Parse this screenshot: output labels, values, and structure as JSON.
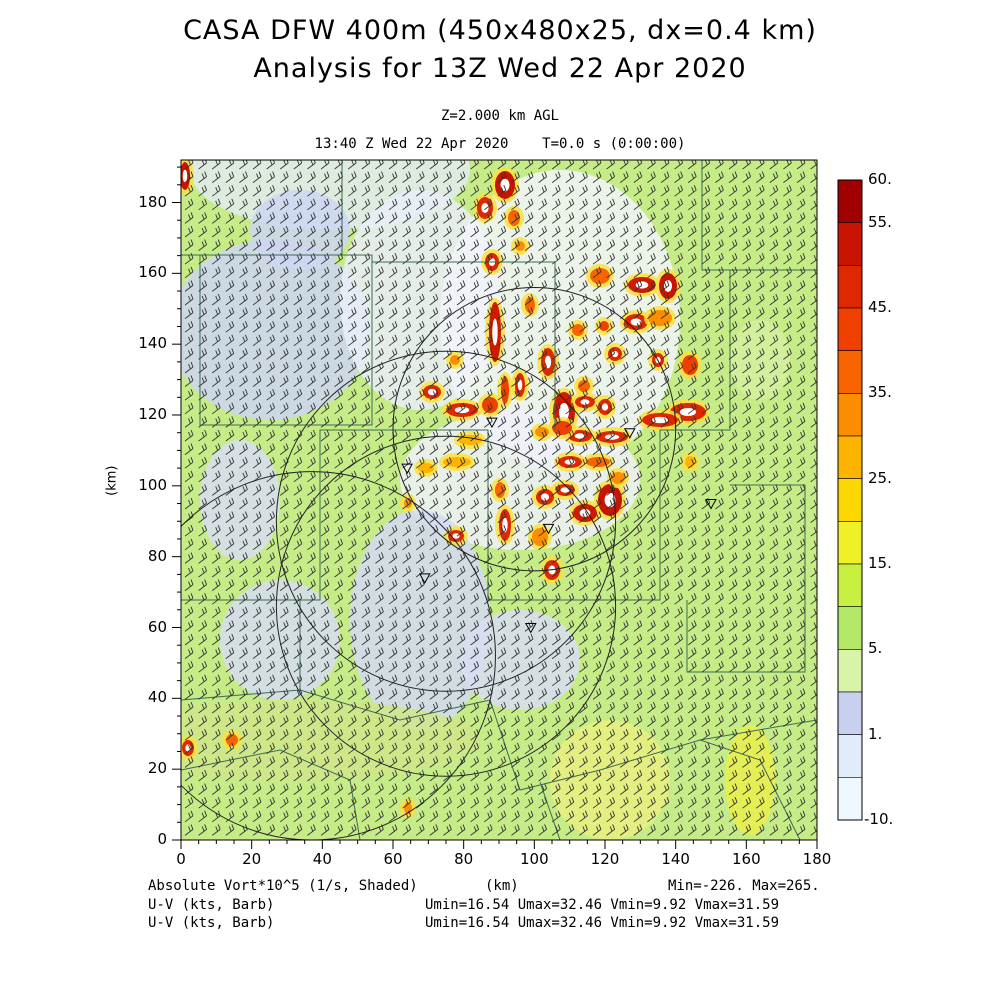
{
  "title_line1": "CASA DFW 400m (450x480x25, dx=0.4 km)",
  "title_line2": "Analysis for 13Z Wed 22 Apr 2020",
  "level_label": "Z=2.000 km AGL",
  "time_label": "13:40 Z Wed 22 Apr 2020",
  "t_label": "T=0.0 s (0:00:00)",
  "y_axis_title": "(km)",
  "x_axis_title": "(km)",
  "x_ticks": [
    "0",
    "20",
    "40",
    "60",
    "80",
    "100",
    "120",
    "140",
    "160",
    "180"
  ],
  "y_ticks": [
    "0",
    "20",
    "40",
    "60",
    "80",
    "100",
    "120",
    "140",
    "160",
    "180"
  ],
  "colorbar_labels": [
    "60.",
    "55.",
    "45.",
    "35.",
    "25.",
    "15.",
    "5.",
    "1.",
    "-10."
  ],
  "colorbar_colors": [
    "#a00000",
    "#c81400",
    "#e02800",
    "#f04000",
    "#f86400",
    "#fc8c00",
    "#fcb400",
    "#fcd800",
    "#f0f028",
    "#c8f040",
    "#b4e868",
    "#d8f4a8",
    "#c8d0f0",
    "#e0ecfc",
    "#f0f8ff"
  ],
  "footer": {
    "field": "Absolute Vort*10^5 (1/s, Shaded)",
    "km": "(km)",
    "minmax": "Min=-226. Max=265.",
    "uv1_label": "U-V (kts, Barb)",
    "uv1_stats": "Umin=16.54 Umax=32.46 Vmin=9.92 Vmax=31.59",
    "uv2_label": "U-V (kts, Barb)",
    "uv2_stats": "Umin=16.54 Umax=32.46 Vmin=9.92 Vmax=31.59"
  },
  "map_data": {
    "x_range_km": [
      0,
      180
    ],
    "y_range_km": [
      0,
      192
    ],
    "radars_km": [
      [
        100,
        116,
        40
      ],
      [
        75,
        90,
        48
      ],
      [
        75,
        66,
        48
      ],
      [
        37,
        52,
        52
      ]
    ],
    "radar_sites_km": [
      [
        88,
        118
      ],
      [
        64,
        105
      ],
      [
        104,
        88
      ],
      [
        69,
        74
      ],
      [
        99,
        60
      ],
      [
        127,
        115
      ],
      [
        150,
        95
      ]
    ]
  }
}
